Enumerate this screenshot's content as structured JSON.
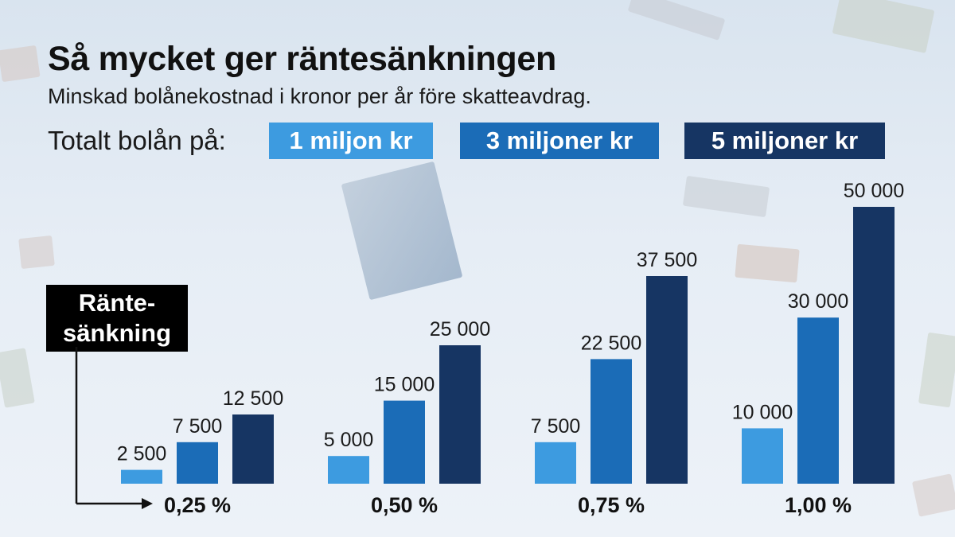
{
  "title": "Så mycket ger räntesänkningen",
  "subtitle": "Minskad bolånekostnad i kronor per år före skatteavdrag.",
  "legend": {
    "label": "Totalt bolån på:",
    "items": [
      {
        "label": "1 miljon kr",
        "color": "#3d9be0"
      },
      {
        "label": "3 miljoner kr",
        "color": "#1b6cb7"
      },
      {
        "label": "5 miljoner kr",
        "color": "#163563"
      }
    ]
  },
  "axis_label": "Ränte-\nsänkning",
  "chart_data": {
    "type": "bar",
    "title": "Så mycket ger räntesänkningen",
    "subtitle": "Minskad bolånekostnad i kronor per år före skatteavdrag.",
    "xlabel": "Ränte-sänkning",
    "ylabel": "",
    "categories": [
      "0,25 %",
      "0,50 %",
      "0,75 %",
      "1,00 %"
    ],
    "series": [
      {
        "name": "1 miljon kr",
        "color": "#3d9be0",
        "values": [
          2500,
          5000,
          7500,
          10000
        ],
        "labels": [
          "2 500",
          "5 000",
          "7 500",
          "10 000"
        ]
      },
      {
        "name": "3 miljoner kr",
        "color": "#1b6cb7",
        "values": [
          7500,
          15000,
          22500,
          30000
        ],
        "labels": [
          "7 500",
          "15 000",
          "22 500",
          "30 000"
        ]
      },
      {
        "name": "5 miljoner kr",
        "color": "#163563",
        "values": [
          12500,
          25000,
          37500,
          50000
        ],
        "labels": [
          "12 500",
          "25 000",
          "37 500",
          "50 000"
        ]
      }
    ],
    "ylim": [
      0,
      50000
    ],
    "grid": false,
    "legend_position": "top"
  }
}
